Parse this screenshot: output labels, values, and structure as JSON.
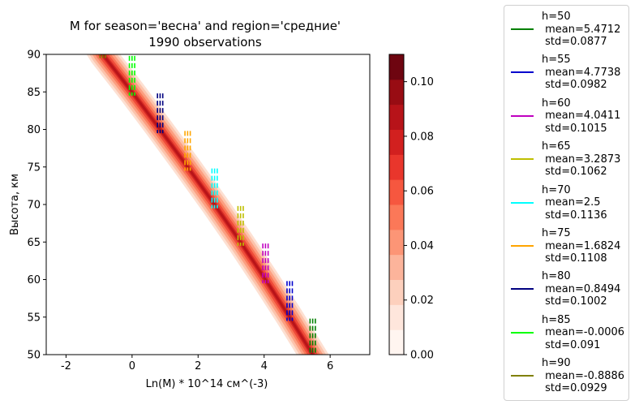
{
  "chart_data": {
    "type": "line",
    "title": "M for season='весна' and region='средние'",
    "subtitle": "1990 observations",
    "xlabel": "Ln(M) * 10^14 см^(-3)",
    "ylabel": "Высота, км",
    "xlim": [
      -2.6,
      7.2
    ],
    "ylim": [
      50,
      90
    ],
    "xticks": [
      -2,
      0,
      2,
      4,
      6
    ],
    "yticks": [
      50,
      55,
      60,
      65,
      70,
      75,
      80,
      85,
      90
    ],
    "grid": false,
    "legend_placement": "outside-right",
    "series": [
      {
        "name": "h=50",
        "mean": "5.4712",
        "std": "0.0877",
        "color": "#008000",
        "h": 50,
        "x": 5.4712,
        "s": 0.0877
      },
      {
        "name": "h=55",
        "mean": "4.7738",
        "std": "0.0982",
        "color": "#0000cd",
        "h": 55,
        "x": 4.7738,
        "s": 0.0982
      },
      {
        "name": "h=60",
        "mean": "4.0411",
        "std": "0.1015",
        "color": "#c000c0",
        "h": 60,
        "x": 4.0411,
        "s": 0.1015
      },
      {
        "name": "h=65",
        "mean": "3.2873",
        "std": "0.1062",
        "color": "#bfbf00",
        "h": 65,
        "x": 3.2873,
        "s": 0.1062
      },
      {
        "name": "h=70",
        "mean": "2.5",
        "std": "0.1136",
        "color": "#00ffff",
        "h": 70,
        "x": 2.5,
        "s": 0.1136
      },
      {
        "name": "h=75",
        "mean": "1.6824",
        "std": "0.1108",
        "color": "#ffa500",
        "h": 75,
        "x": 1.6824,
        "s": 0.1108
      },
      {
        "name": "h=80",
        "mean": "0.8494",
        "std": "0.1002",
        "color": "#000080",
        "h": 80,
        "x": 0.8494,
        "s": 0.1002
      },
      {
        "name": "h=85",
        "mean": "-0.0006",
        "std": "0.091",
        "color": "#00ff00",
        "h": 85,
        "x": -0.0006,
        "s": 0.091
      },
      {
        "name": "h=90",
        "mean": "-0.8886",
        "std": "0.0929",
        "color": "#808000",
        "h": 90,
        "x": -0.8886,
        "s": 0.0929
      }
    ],
    "density_curve": {
      "h": [
        50,
        55,
        60,
        65,
        70,
        75,
        80,
        85,
        90
      ],
      "x": [
        5.4712,
        4.7738,
        4.0411,
        3.2873,
        2.5,
        1.6824,
        0.8494,
        -0.0006,
        -0.8886
      ]
    },
    "colorbar": {
      "colormap": "Reds",
      "min": 0,
      "max": 0.11,
      "ticks": [
        0.0,
        0.02,
        0.04,
        0.06,
        0.08,
        0.1
      ],
      "tick_labels": [
        "0.00",
        "0.02",
        "0.04",
        "0.06",
        "0.08",
        "0.10"
      ],
      "levels": 12
    }
  }
}
